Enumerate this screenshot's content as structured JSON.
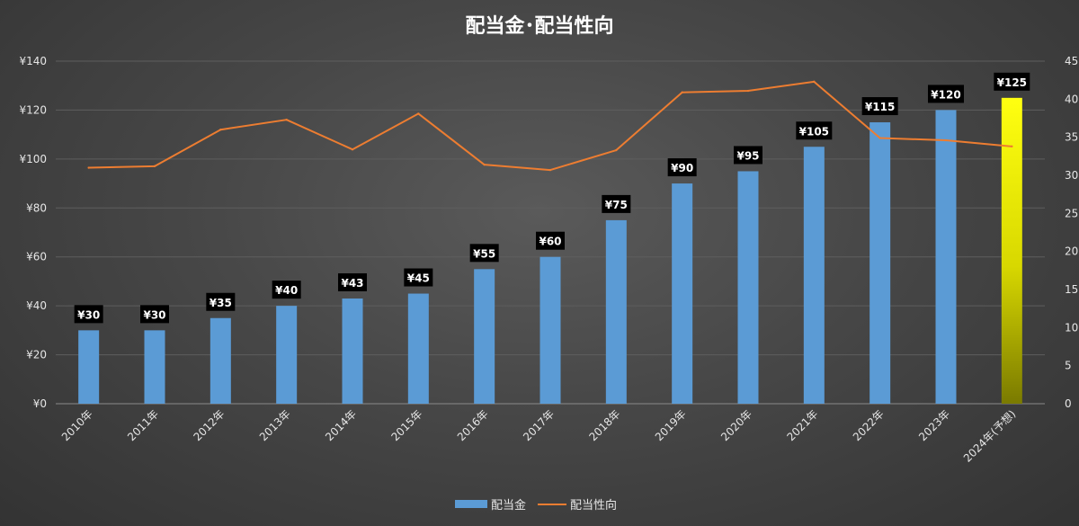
{
  "chart_data": {
    "type": "bar",
    "title": "配当金･配当性向",
    "categories": [
      "2010年",
      "2011年",
      "2012年",
      "2013年",
      "2014年",
      "2015年",
      "2016年",
      "2017年",
      "2018年",
      "2019年",
      "2020年",
      "2021年",
      "2022年",
      "2023年",
      "2024年(予想)"
    ],
    "series": [
      {
        "name": "配当金",
        "type": "bar",
        "axis": "left",
        "color": "#5b9bd5",
        "highlight_color": "#f2f200",
        "highlight_index": 14,
        "values": [
          30,
          30,
          35,
          40,
          43,
          45,
          55,
          60,
          75,
          90,
          95,
          105,
          115,
          120,
          125
        ],
        "labels": [
          "¥30",
          "¥30",
          "¥35",
          "¥40",
          "¥43",
          "¥45",
          "¥55",
          "¥60",
          "¥75",
          "¥90",
          "¥95",
          "¥105",
          "¥115",
          "¥120",
          "¥125"
        ]
      },
      {
        "name": "配当性向",
        "type": "line",
        "axis": "right",
        "color": "#ed7d31",
        "values": [
          31.0,
          31.2,
          36.0,
          37.3,
          33.4,
          38.1,
          31.4,
          30.7,
          33.3,
          40.9,
          41.1,
          42.3,
          34.9,
          34.6,
          33.8
        ]
      }
    ],
    "y_left": {
      "min": 0,
      "max": 140,
      "step": 20,
      "tick_labels": [
        "¥0",
        "¥20",
        "¥40",
        "¥60",
        "¥80",
        "¥100",
        "¥120",
        "¥140"
      ]
    },
    "y_right": {
      "min": 0,
      "max": 45,
      "step": 5,
      "tick_labels": [
        "0",
        "5",
        "10",
        "15",
        "20",
        "25",
        "30",
        "35",
        "40",
        "45"
      ]
    },
    "grid": true,
    "legend_position": "bottom-center"
  }
}
